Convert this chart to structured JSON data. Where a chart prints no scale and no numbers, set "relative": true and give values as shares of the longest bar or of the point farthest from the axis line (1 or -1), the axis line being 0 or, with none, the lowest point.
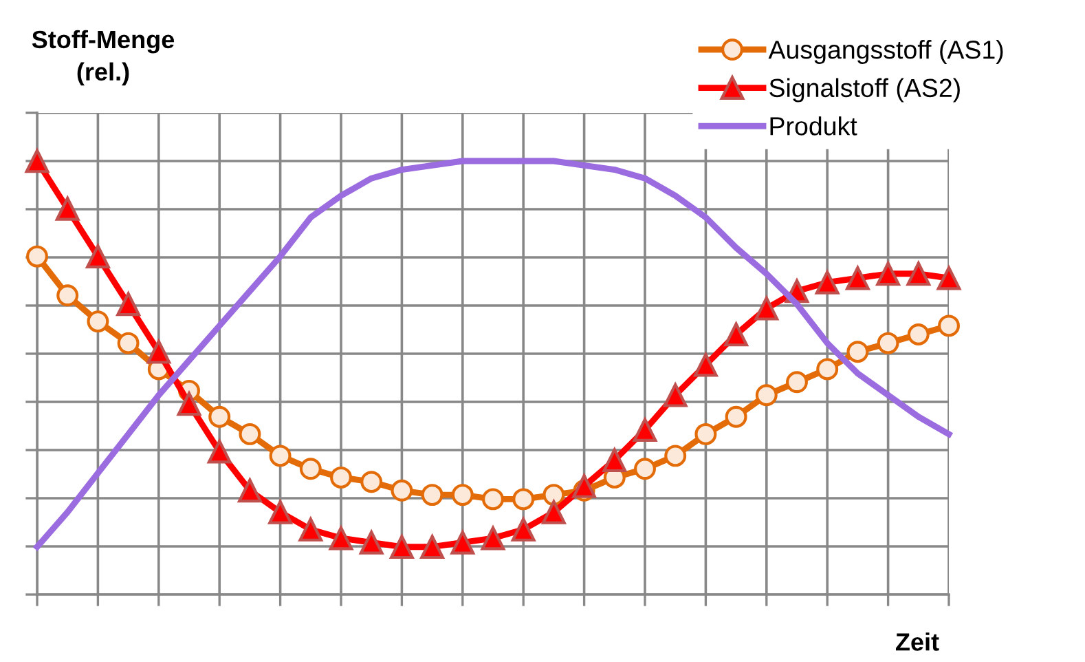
{
  "chart_data": {
    "type": "line",
    "relative": true,
    "ylabel": "Stoff-Menge\n(rel.)",
    "xlabel": "Zeit",
    "categories": [
      null,
      null,
      null,
      null,
      null,
      null,
      null,
      null,
      null,
      null,
      null,
      null,
      null,
      null,
      null,
      null,
      null,
      null,
      null,
      null,
      null,
      null,
      null,
      null,
      null,
      null,
      null,
      null,
      null,
      null,
      null
    ],
    "grid": true,
    "legend": "top right",
    "series": [
      {
        "name": "Ausgangsstoff (AS1)",
        "color": "#e36c09",
        "marker": "circle",
        "values": [
          0.78,
          0.69,
          0.63,
          0.58,
          0.52,
          0.47,
          0.41,
          0.37,
          0.32,
          0.29,
          0.27,
          0.26,
          0.24,
          0.23,
          0.23,
          0.22,
          0.22,
          0.23,
          0.24,
          0.27,
          0.29,
          0.32,
          0.37,
          0.41,
          0.46,
          0.49,
          0.52,
          0.56,
          0.58,
          0.6,
          0.62
        ]
      },
      {
        "name": "Signalstoff (AS2)",
        "color": "#ff0000",
        "marker": "triangle",
        "values": [
          1.0,
          0.89,
          0.78,
          0.67,
          0.56,
          0.44,
          0.33,
          0.24,
          0.19,
          0.15,
          0.13,
          0.12,
          0.11,
          0.11,
          0.12,
          0.13,
          0.15,
          0.19,
          0.25,
          0.31,
          0.38,
          0.46,
          0.53,
          0.6,
          0.66,
          0.7,
          0.72,
          0.73,
          0.74,
          0.74,
          0.73
        ]
      },
      {
        "name": "Produkt",
        "color": "#9b6be0",
        "marker": "none",
        "values": [
          0.11,
          0.19,
          0.28,
          0.37,
          0.46,
          0.54,
          0.62,
          0.7,
          0.78,
          0.87,
          0.92,
          0.96,
          0.98,
          0.99,
          1.0,
          1.0,
          1.0,
          1.0,
          0.99,
          0.98,
          0.96,
          0.92,
          0.87,
          0.8,
          0.74,
          0.67,
          0.58,
          0.51,
          0.46,
          0.41,
          0.37
        ]
      }
    ]
  }
}
